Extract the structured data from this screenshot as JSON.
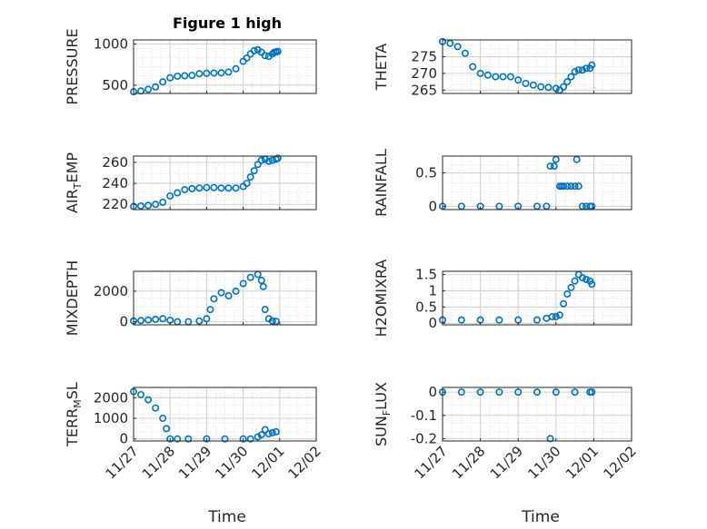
{
  "figure": {
    "title": "Figure 1 high",
    "xlabel": "Time"
  },
  "colors": {
    "marker": "#0072BD",
    "axes": "#262626",
    "grid": "#d0d0d0"
  },
  "chart_data": [
    {
      "type": "scatter",
      "ylabel": "PRESSURE",
      "ylim": [
        400,
        1050
      ],
      "yticks": [
        500,
        1000
      ],
      "ytick_labels": [
        "500",
        "1000"
      ],
      "xlim": [
        0,
        5
      ],
      "xtick_labels": [],
      "grid": "on",
      "series": [
        {
          "name": "",
          "x": [
            0.0,
            0.2,
            0.4,
            0.6,
            0.8,
            1.0,
            1.2,
            1.4,
            1.6,
            1.8,
            2.0,
            2.2,
            2.4,
            2.6,
            2.8,
            3.0,
            3.1,
            3.2,
            3.3,
            3.4,
            3.5,
            3.6,
            3.7,
            3.8,
            3.85,
            3.9,
            3.95
          ],
          "values": [
            420,
            430,
            450,
            480,
            540,
            590,
            610,
            615,
            620,
            640,
            645,
            648,
            650,
            660,
            700,
            790,
            830,
            880,
            920,
            930,
            900,
            860,
            850,
            880,
            900,
            905,
            910
          ]
        }
      ]
    },
    {
      "type": "scatter",
      "ylabel": "THETA",
      "ylim": [
        264,
        280
      ],
      "yticks": [
        265,
        270,
        275
      ],
      "ytick_labels": [
        "265",
        "270",
        "275"
      ],
      "xlim": [
        0,
        5
      ],
      "xtick_labels": [],
      "grid": "on",
      "series": [
        {
          "name": "",
          "x": [
            0.0,
            0.2,
            0.4,
            0.6,
            0.8,
            1.0,
            1.2,
            1.4,
            1.6,
            1.8,
            2.0,
            2.2,
            2.4,
            2.6,
            2.8,
            3.0,
            3.1,
            3.2,
            3.3,
            3.4,
            3.5,
            3.6,
            3.7,
            3.8,
            3.9,
            3.95
          ],
          "values": [
            279.5,
            279,
            278,
            276,
            272,
            270,
            269.5,
            269,
            269,
            269,
            268,
            267,
            266.5,
            266,
            265.8,
            265.5,
            265,
            266,
            267.5,
            269,
            270.5,
            271,
            271,
            271.5,
            271.5,
            272.5
          ]
        }
      ]
    },
    {
      "type": "scatter",
      "ylabel": "AIR_TEMP",
      "ylim": [
        215,
        266
      ],
      "yticks": [
        220,
        240,
        260
      ],
      "ytick_labels": [
        "220",
        "240",
        "260"
      ],
      "xlim": [
        0,
        5
      ],
      "xtick_labels": [],
      "grid": "on",
      "series": [
        {
          "name": "",
          "x": [
            0.0,
            0.2,
            0.4,
            0.6,
            0.8,
            1.0,
            1.2,
            1.4,
            1.6,
            1.8,
            2.0,
            2.2,
            2.4,
            2.6,
            2.8,
            3.0,
            3.1,
            3.2,
            3.3,
            3.4,
            3.5,
            3.6,
            3.7,
            3.8,
            3.9,
            3.95
          ],
          "values": [
            218,
            218.5,
            219,
            220,
            222,
            228,
            231,
            234,
            235,
            235.5,
            236,
            236,
            235.5,
            235.5,
            235.5,
            237,
            240,
            246,
            252,
            258,
            262,
            263,
            261,
            262,
            263,
            264
          ]
        }
      ]
    },
    {
      "type": "scatter",
      "ylabel": "RAINFALL",
      "ylim": [
        -0.05,
        0.75
      ],
      "yticks": [
        0,
        0.5
      ],
      "ytick_labels": [
        "0",
        "0.5"
      ],
      "xlim": [
        0,
        5
      ],
      "xtick_labels": [],
      "grid": "on",
      "series": [
        {
          "name": "",
          "x": [
            0.0,
            0.5,
            1.0,
            1.5,
            2.0,
            2.5,
            2.75,
            2.85,
            2.95,
            3.0,
            3.1,
            3.15,
            3.2,
            3.3,
            3.4,
            3.5,
            3.55,
            3.6,
            3.7,
            3.8,
            3.9,
            3.95
          ],
          "values": [
            0,
            0,
            0,
            0,
            0,
            0,
            0,
            0.6,
            0.6,
            0.7,
            0.3,
            0.3,
            0.3,
            0.3,
            0.3,
            0.3,
            0.7,
            0.3,
            0,
            0,
            0,
            0
          ]
        }
      ]
    },
    {
      "type": "scatter",
      "ylabel": "MIXDEPTH",
      "ylim": [
        -200,
        3300
      ],
      "yticks": [
        0,
        2000
      ],
      "ytick_labels": [
        "0",
        "2000"
      ],
      "xlim": [
        0,
        5
      ],
      "xtick_labels": [],
      "grid": "on",
      "series": [
        {
          "name": "",
          "x": [
            0.0,
            0.2,
            0.4,
            0.6,
            0.8,
            1.0,
            1.2,
            1.5,
            1.8,
            2.0,
            2.1,
            2.2,
            2.4,
            2.6,
            2.8,
            3.0,
            3.2,
            3.4,
            3.5,
            3.55,
            3.6,
            3.7,
            3.8,
            3.9
          ],
          "values": [
            50,
            80,
            120,
            160,
            200,
            100,
            0,
            0,
            50,
            200,
            800,
            1500,
            1900,
            1700,
            2000,
            2500,
            2900,
            3100,
            2700,
            2300,
            800,
            200,
            50,
            30
          ]
        }
      ]
    },
    {
      "type": "scatter",
      "ylabel": "H2OMIXRA",
      "ylim": [
        -0.05,
        1.6
      ],
      "yticks": [
        0,
        0.5,
        1,
        1.5
      ],
      "ytick_labels": [
        "0",
        "0.5",
        "1",
        "1.5"
      ],
      "xlim": [
        0,
        5
      ],
      "xtick_labels": [],
      "grid": "on",
      "series": [
        {
          "name": "",
          "x": [
            0.0,
            0.5,
            1.0,
            1.5,
            2.0,
            2.5,
            2.75,
            2.9,
            3.0,
            3.1,
            3.2,
            3.3,
            3.4,
            3.5,
            3.6,
            3.7,
            3.8,
            3.9,
            3.95
          ],
          "values": [
            0.1,
            0.1,
            0.1,
            0.1,
            0.1,
            0.1,
            0.15,
            0.2,
            0.2,
            0.25,
            0.6,
            0.9,
            1.1,
            1.3,
            1.5,
            1.4,
            1.35,
            1.3,
            1.2
          ]
        }
      ]
    },
    {
      "type": "scatter",
      "ylabel": "TERR_MSL",
      "ylim": [
        -100,
        2500
      ],
      "yticks": [
        0,
        1000,
        2000
      ],
      "ytick_labels": [
        "0",
        "1000",
        "2000"
      ],
      "xlim": [
        0,
        5
      ],
      "xtick_labels": [
        "11/27",
        "11/28",
        "11/29",
        "11/30",
        "12/01",
        "12/02"
      ],
      "grid": "on",
      "series": [
        {
          "name": "",
          "x": [
            0.0,
            0.2,
            0.4,
            0.6,
            0.8,
            0.9,
            1.0,
            1.2,
            1.5,
            2.0,
            2.5,
            3.0,
            3.2,
            3.4,
            3.5,
            3.6,
            3.7,
            3.8,
            3.9
          ],
          "values": [
            2300,
            2150,
            1900,
            1500,
            1000,
            500,
            0,
            0,
            0,
            0,
            0,
            0,
            0,
            100,
            200,
            450,
            250,
            300,
            350
          ]
        }
      ]
    },
    {
      "type": "scatter",
      "ylabel": "SUN_FLUX",
      "ylim": [
        -0.21,
        0.02
      ],
      "yticks": [
        -0.2,
        -0.1,
        0
      ],
      "ytick_labels": [
        "-0.2",
        "-0.1",
        "0"
      ],
      "xlim": [
        0,
        5
      ],
      "xtick_labels": [
        "11/27",
        "11/28",
        "11/29",
        "11/30",
        "12/01",
        "12/02"
      ],
      "grid": "on",
      "series": [
        {
          "name": "",
          "x": [
            0.0,
            0.5,
            1.0,
            1.5,
            2.0,
            2.5,
            2.85,
            3.0,
            3.5,
            3.9,
            3.95
          ],
          "values": [
            0,
            0,
            0,
            0,
            0,
            0,
            -0.2,
            0,
            0,
            0,
            0
          ]
        }
      ]
    }
  ]
}
